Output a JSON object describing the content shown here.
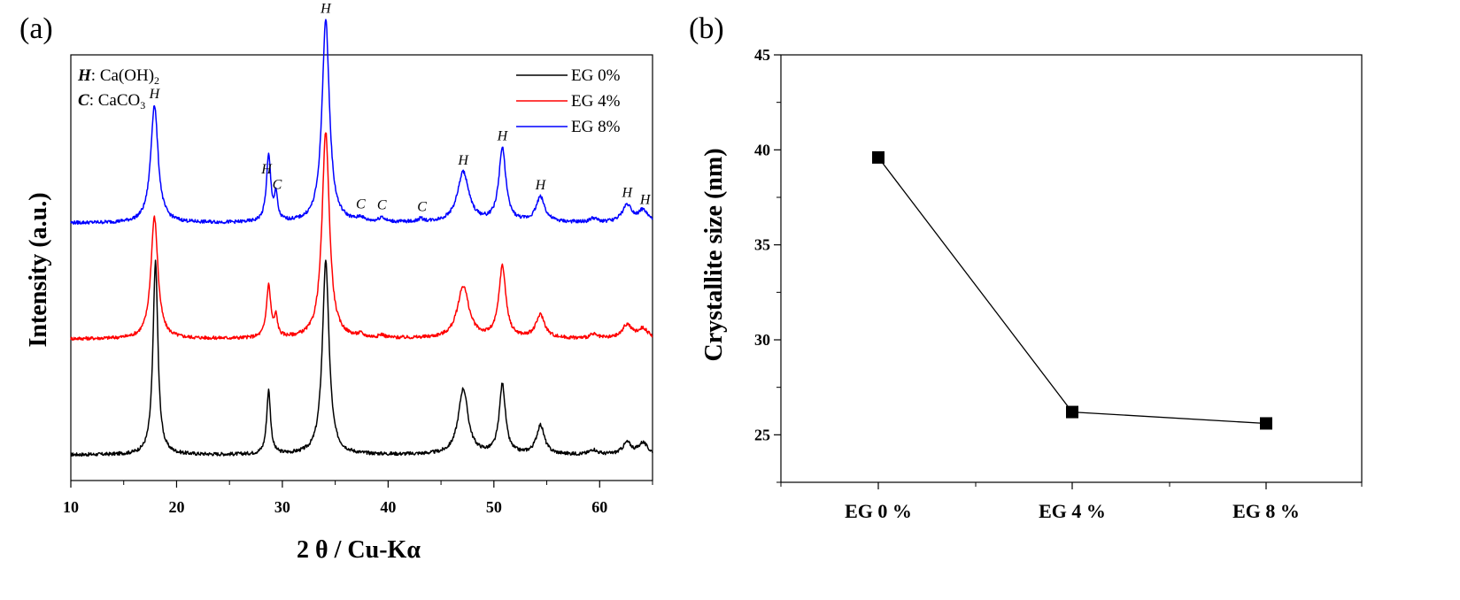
{
  "chart_data": [
    {
      "panel_label": "(a)",
      "type": "line",
      "xlabel": "2 θ / Cu-Kα",
      "ylabel": "Intensity (a.u.)",
      "xlim": [
        10,
        65
      ],
      "xticks": [
        10,
        20,
        30,
        40,
        50,
        60
      ],
      "x_minor_step": 5,
      "legend_position": "top-right",
      "phase_key": [
        {
          "symbol": "H",
          "formula": "Ca(OH)",
          "subscript": "2"
        },
        {
          "symbol": "C",
          "formula": "CaCO",
          "subscript": "3"
        }
      ],
      "phase_key_separator": ": ",
      "series": [
        {
          "name": "EG 0%",
          "color": "#000000",
          "offset": 0,
          "peaks": [
            [
              18.0,
              1.0,
              0.28
            ],
            [
              28.7,
              0.33,
              0.22
            ],
            [
              34.1,
              1.0,
              0.38
            ],
            [
              47.1,
              0.34,
              0.55
            ],
            [
              50.8,
              0.36,
              0.35
            ],
            [
              54.4,
              0.15,
              0.45
            ],
            [
              59.4,
              0.025,
              0.4
            ],
            [
              62.6,
              0.06,
              0.5
            ],
            [
              64.1,
              0.06,
              0.5
            ]
          ]
        },
        {
          "name": "EG 4%",
          "color": "#ff0000",
          "offset": 1.0,
          "peaks": [
            [
              17.9,
              0.63,
              0.4
            ],
            [
              28.7,
              0.27,
              0.25
            ],
            [
              29.4,
              0.1,
              0.18
            ],
            [
              34.1,
              1.07,
              0.42
            ],
            [
              47.1,
              0.27,
              0.65
            ],
            [
              50.8,
              0.37,
              0.4
            ],
            [
              54.4,
              0.12,
              0.5
            ],
            [
              59.4,
              0.02,
              0.4
            ],
            [
              62.6,
              0.07,
              0.55
            ],
            [
              64.1,
              0.05,
              0.55
            ],
            [
              37.4,
              0.015,
              0.3
            ],
            [
              39.4,
              0.015,
              0.3
            ]
          ]
        },
        {
          "name": "EG 8%",
          "color": "#0000ff",
          "offset": 2.0,
          "peaks": [
            [
              17.9,
              0.61,
              0.42
            ],
            [
              28.7,
              0.34,
              0.25
            ],
            [
              29.4,
              0.13,
              0.18
            ],
            [
              34.1,
              1.05,
              0.42
            ],
            [
              47.1,
              0.26,
              0.65
            ],
            [
              50.8,
              0.38,
              0.4
            ],
            [
              54.4,
              0.13,
              0.5
            ],
            [
              59.4,
              0.02,
              0.4
            ],
            [
              62.6,
              0.09,
              0.55
            ],
            [
              64.1,
              0.06,
              0.55
            ],
            [
              37.4,
              0.02,
              0.3
            ],
            [
              39.4,
              0.025,
              0.3
            ],
            [
              43.1,
              0.015,
              0.3
            ]
          ]
        }
      ],
      "peak_annotations": [
        {
          "label": "H",
          "x": 17.9
        },
        {
          "label": "H",
          "x": 28.5
        },
        {
          "label": "C",
          "x": 29.5
        },
        {
          "label": "H",
          "x": 34.1
        },
        {
          "label": "C",
          "x": 37.4
        },
        {
          "label": "C",
          "x": 39.4
        },
        {
          "label": "C",
          "x": 43.2
        },
        {
          "label": "H",
          "x": 47.1
        },
        {
          "label": "H",
          "x": 50.8
        },
        {
          "label": "H",
          "x": 54.4
        },
        {
          "label": "H",
          "x": 62.6
        },
        {
          "label": "H",
          "x": 64.3
        }
      ]
    },
    {
      "panel_label": "(b)",
      "type": "line",
      "ylabel": "Crystallite size (nm)",
      "xlabel": "",
      "categories": [
        "EG 0 %",
        "EG 4 %",
        "EG 8 %"
      ],
      "values": [
        39.6,
        26.2,
        25.6
      ],
      "ylim": [
        22.5,
        45
      ],
      "yticks": [
        25,
        30,
        35,
        40,
        45
      ],
      "y_minor_step": 2.5,
      "marker": "square",
      "color": "#000000"
    }
  ]
}
